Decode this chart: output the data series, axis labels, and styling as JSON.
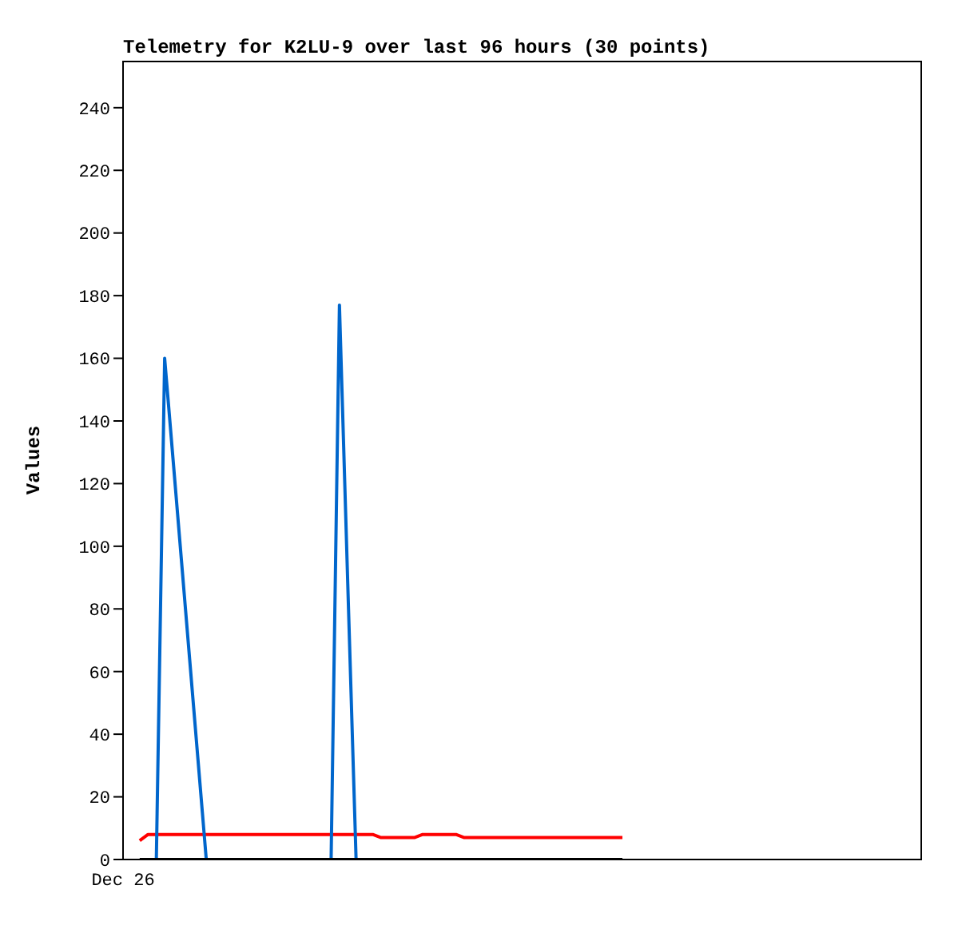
{
  "chart_data": {
    "type": "line",
    "title": "Telemetry for K2LU-9 over last 96 hours (30 points)",
    "ylabel": "Values",
    "ylim": [
      0,
      255
    ],
    "yticks": [
      0,
      20,
      40,
      60,
      80,
      100,
      120,
      140,
      160,
      180,
      200,
      220,
      240
    ],
    "marker": "none",
    "line_style": "solid",
    "categories": [
      "Dec 26",
      null,
      null,
      null,
      null,
      null,
      null,
      null,
      null,
      null,
      null,
      null,
      null,
      null,
      null,
      null,
      null,
      null,
      null,
      null,
      null,
      null,
      null,
      null,
      null,
      null,
      null,
      null,
      null,
      null,
      null,
      null,
      null,
      null,
      null,
      null,
      null,
      null,
      null,
      null,
      null,
      null,
      null,
      null,
      null,
      null,
      null,
      null,
      null,
      null,
      null,
      null,
      null,
      null,
      null,
      null,
      null,
      null,
      null,
      null,
      null,
      null,
      null,
      null,
      null,
      null,
      null,
      null,
      null,
      null,
      null,
      null,
      null,
      null,
      null,
      null,
      null,
      null,
      null,
      null,
      null,
      null,
      null,
      null,
      null,
      null,
      null,
      null,
      null,
      null,
      null,
      null,
      null,
      null,
      null,
      null,
      null
    ],
    "series": [
      {
        "color": "#ff0000",
        "values": [
          null,
          null,
          6,
          8,
          8,
          8,
          8,
          8,
          8,
          8,
          8,
          8,
          8,
          8,
          8,
          8,
          8,
          8,
          8,
          8,
          8,
          8,
          8,
          8,
          8,
          8,
          8,
          8,
          8,
          8,
          8,
          7,
          7,
          7,
          7,
          7,
          8,
          8,
          8,
          8,
          8,
          7,
          7,
          7,
          7,
          7,
          7,
          7,
          7,
          7,
          7,
          7,
          7,
          7,
          7,
          7,
          7,
          7,
          7,
          7,
          7,
          null,
          null,
          null,
          null,
          null,
          null,
          null,
          null,
          null,
          null,
          null,
          null,
          null,
          null,
          null,
          null,
          null,
          null,
          null,
          null,
          null,
          null,
          null,
          null,
          null,
          null,
          null,
          null,
          null,
          null,
          null,
          null,
          null,
          null,
          null,
          null
        ]
      },
      {
        "color": "#0066cc",
        "values": [
          null,
          null,
          null,
          null,
          0,
          160,
          128,
          96,
          64,
          32,
          0,
          null,
          null,
          null,
          null,
          null,
          null,
          null,
          null,
          null,
          null,
          null,
          null,
          null,
          null,
          0,
          177,
          88,
          0,
          null,
          null,
          null,
          null,
          null,
          null,
          null,
          null,
          null,
          null,
          null,
          null,
          null,
          null,
          null,
          null,
          null,
          null,
          null,
          null,
          null,
          null,
          null,
          null,
          null,
          null,
          null,
          null,
          null,
          null,
          null,
          null,
          null,
          null,
          null,
          null,
          null,
          null,
          null,
          null,
          null,
          null,
          null,
          null,
          null,
          null,
          null,
          null,
          null,
          null,
          null,
          null,
          null,
          null,
          null,
          null,
          null,
          null,
          null,
          null,
          null,
          null,
          null,
          null,
          null,
          null,
          null,
          null
        ]
      },
      {
        "color": "#000000",
        "values": [
          null,
          null,
          0,
          0,
          0,
          0,
          0,
          0,
          0,
          0,
          0,
          0,
          0,
          0,
          0,
          0,
          0,
          0,
          0,
          0,
          0,
          0,
          0,
          0,
          0,
          0,
          0,
          0,
          0,
          0,
          0,
          0,
          0,
          0,
          0,
          0,
          0,
          0,
          0,
          0,
          0,
          0,
          0,
          0,
          0,
          0,
          0,
          0,
          0,
          0,
          0,
          0,
          0,
          0,
          0,
          0,
          0,
          0,
          0,
          0,
          0,
          null,
          null,
          null,
          null,
          null,
          null,
          null,
          null,
          null,
          null,
          null,
          null,
          null,
          null,
          null,
          null,
          null,
          null,
          null,
          null,
          null,
          null,
          null,
          null,
          null,
          null,
          null,
          null,
          null,
          null,
          null,
          null,
          null,
          null,
          null,
          null
        ]
      }
    ]
  }
}
